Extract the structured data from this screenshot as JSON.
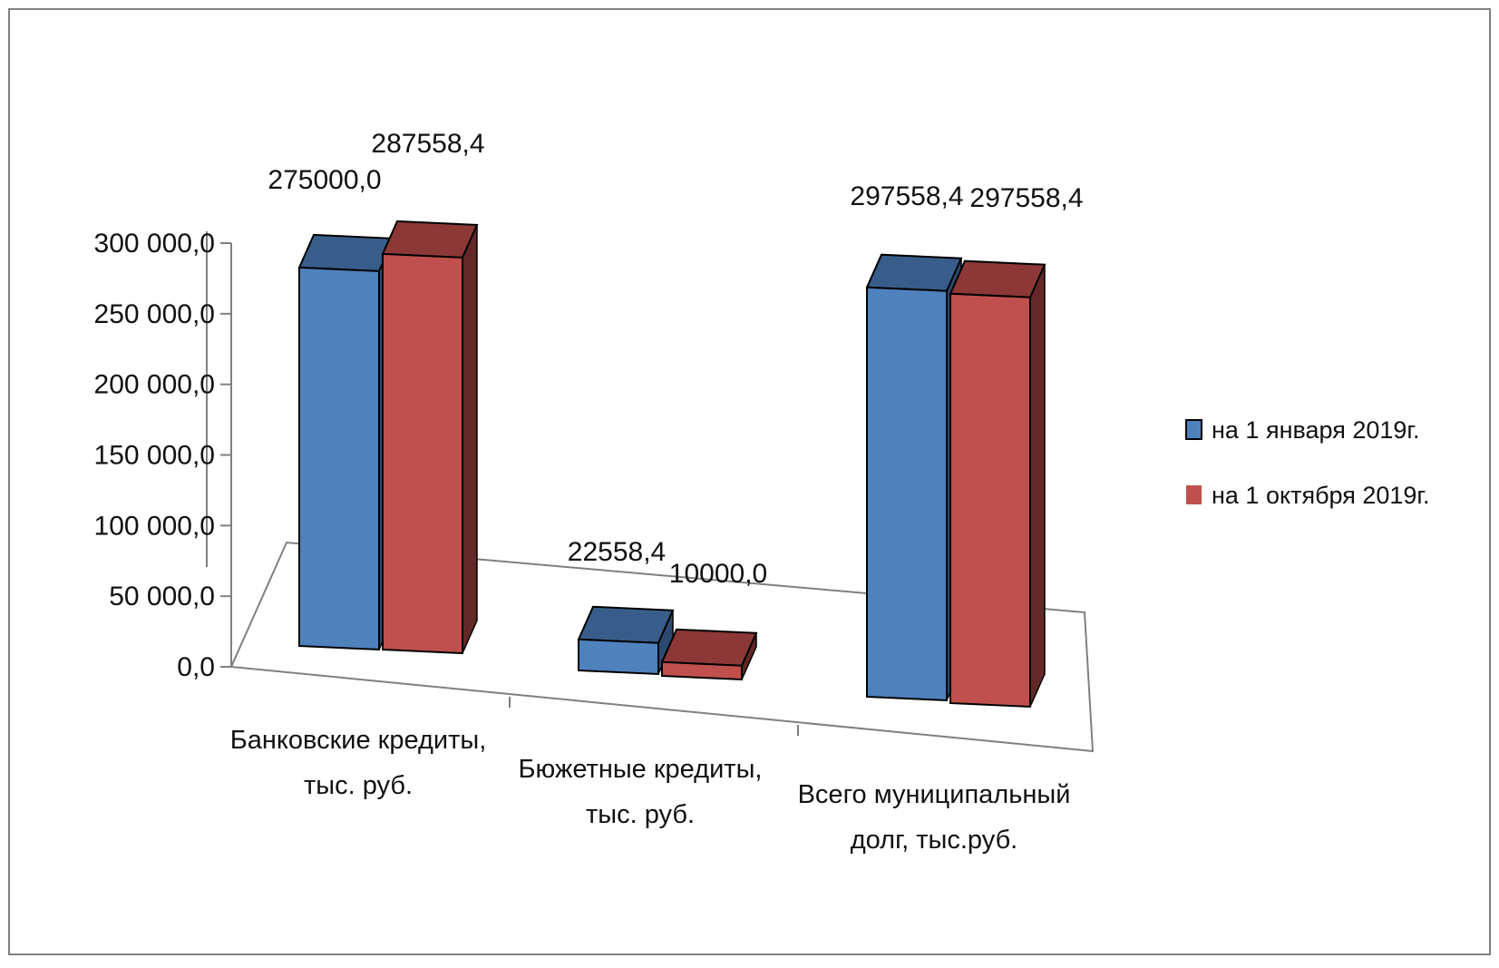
{
  "chart_data": {
    "type": "bar",
    "title": "",
    "xlabel": "",
    "ylabel": "",
    "ylim": [
      0,
      300000
    ],
    "yticks": [
      "0,0",
      "50 000,0",
      "100 000,0",
      "150 000,0",
      "200 000,0",
      "250 000,0",
      "300 000,0"
    ],
    "categories": [
      [
        "Банковские кредиты,",
        "тыс. руб."
      ],
      [
        "Бюжетные кредиты,",
        "тыс. руб."
      ],
      [
        "Всего муниципальный",
        "долг, тыс.руб."
      ]
    ],
    "series": [
      {
        "name": "на 1 января 2019г.",
        "values": [
          275000.0,
          22558.4,
          297558.4
        ],
        "labels": [
          "275000,0",
          "22558,4",
          "297558,4"
        ]
      },
      {
        "name": "на 1 октября 2019г.",
        "values": [
          287558.4,
          10000.0,
          297558.4
        ],
        "labels": [
          "287558,4",
          "10000,0",
          "297558,4"
        ]
      }
    ],
    "grid": false,
    "legend": "right",
    "style": "3d-clustered-column",
    "colors": {
      "series1_front": "#4f81bd",
      "series1_top": "#385d8a",
      "series1_side": "#2c4a70",
      "series2_front": "#c0504d",
      "series2_top": "#8c3836",
      "series2_side": "#632827",
      "axis": "#808080",
      "frame": "#808080"
    }
  }
}
